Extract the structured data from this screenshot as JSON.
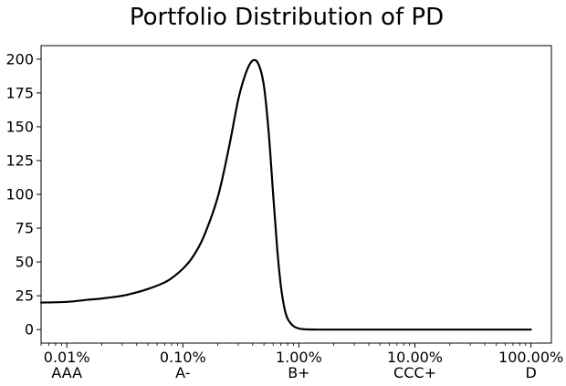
{
  "chart_data": {
    "type": "line",
    "title": "Portfolio Distribution of PD",
    "xlabel": "",
    "ylabel": "",
    "x_scale": "log",
    "xlim": [
      6e-05,
      1.5
    ],
    "ylim": [
      -10,
      210
    ],
    "grid": false,
    "legend": "none",
    "line_color": "#000000",
    "x_ticks": [
      {
        "value": 0.0001,
        "label": "0.01%",
        "rating": "AAA"
      },
      {
        "value": 0.001,
        "label": "0.10%",
        "rating": "A-"
      },
      {
        "value": 0.01,
        "label": "1.00%",
        "rating": "B+"
      },
      {
        "value": 0.1,
        "label": "10.00%",
        "rating": "CCC+"
      },
      {
        "value": 1.0,
        "label": "100.00%",
        "rating": "D"
      }
    ],
    "y_ticks": [
      0,
      25,
      50,
      75,
      100,
      125,
      150,
      175,
      200
    ],
    "series": [
      {
        "x": [
          6e-05,
          0.0001,
          0.00015,
          0.0002,
          0.0003,
          0.0004,
          0.0005,
          0.0006,
          0.0007,
          0.0008,
          0.001,
          0.0012,
          0.0015,
          0.002,
          0.0025,
          0.003,
          0.0035,
          0.004,
          0.0045,
          0.005,
          0.0055,
          0.006,
          0.0065,
          0.007,
          0.0075,
          0.008,
          0.009,
          0.01,
          0.011,
          0.012,
          0.015,
          0.02,
          0.05,
          0.1,
          0.3,
          1.0
        ],
        "y": [
          20,
          20.5,
          22,
          23,
          25,
          27.5,
          30,
          32.5,
          35,
          38,
          45,
          53,
          68,
          98,
          135,
          170,
          190,
          199,
          196,
          180,
          145,
          100,
          60,
          32,
          16,
          8,
          2.5,
          0.8,
          0.3,
          0.1,
          0,
          0,
          0,
          0,
          0,
          0
        ]
      }
    ]
  }
}
